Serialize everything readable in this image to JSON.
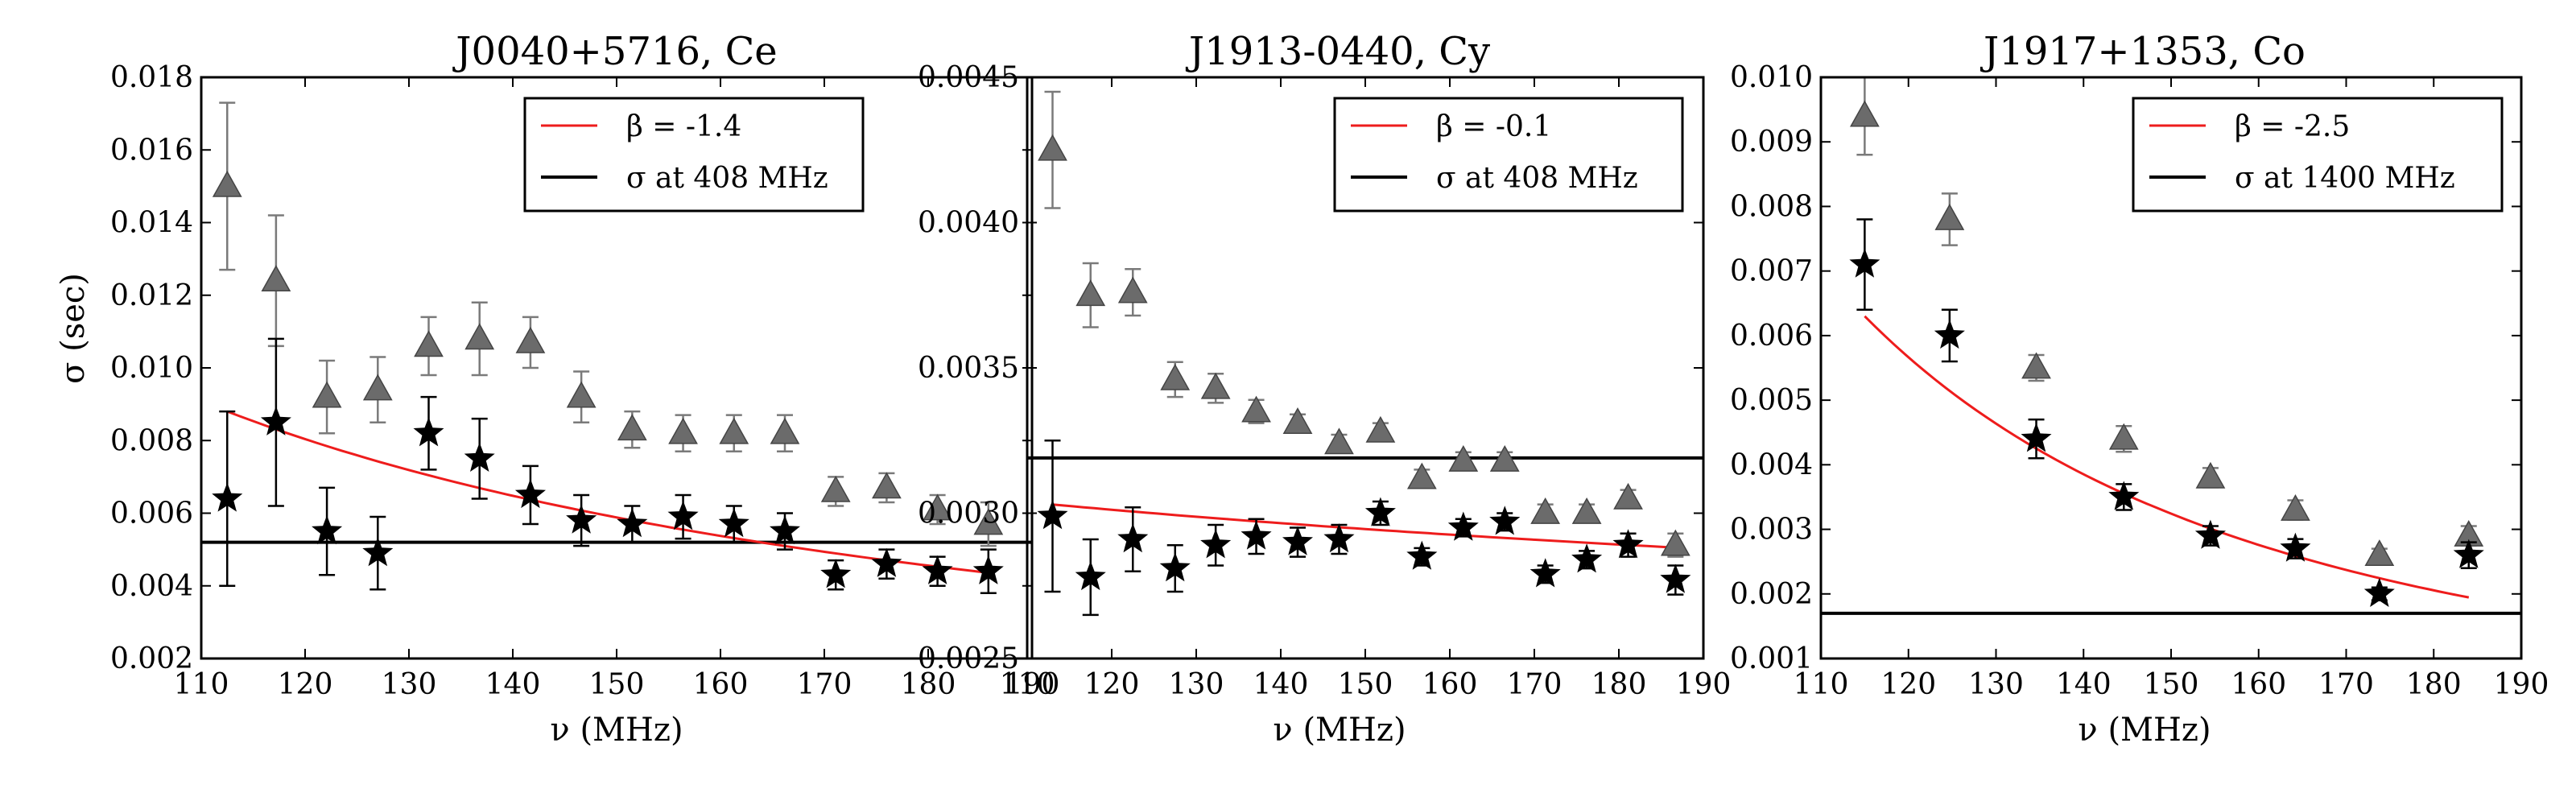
{
  "chart_data": [
    {
      "type": "scatter",
      "title": "J0040+5716, Ce",
      "xlabel": "ν (MHz)",
      "ylabel": "σ (sec)",
      "xlim": [
        110,
        190
      ],
      "ylim": [
        0.002,
        0.018
      ],
      "xticks": [
        110,
        120,
        130,
        140,
        150,
        160,
        170,
        180,
        190
      ],
      "yticks": [
        0.002,
        0.004,
        0.006,
        0.008,
        0.01,
        0.012,
        0.014,
        0.016,
        0.018
      ],
      "xtick_labels": [
        "110",
        "120",
        "130",
        "140",
        "150",
        "160",
        "170",
        "180",
        "190"
      ],
      "ytick_labels": [
        "0.002",
        "0.004",
        "0.006",
        "0.008",
        "0.010",
        "0.012",
        "0.014",
        "0.016",
        "0.018"
      ],
      "legend": {
        "location": "top-right",
        "fit_label": "β = -1.4",
        "hline_label": "σ at 408 MHz"
      },
      "hline": 0.0052,
      "fit_beta": -1.4,
      "fit_x": [
        112.5,
        186
      ],
      "fit_y0": 0.0088,
      "series": [
        {
          "name": "triangles",
          "marker": "triangle",
          "color": "#6b6b6b",
          "x": [
            112.5,
            117.2,
            122.1,
            127,
            131.9,
            136.8,
            141.7,
            146.6,
            151.5,
            156.4,
            161.3,
            166.2,
            171.1,
            176,
            180.9,
            185.8
          ],
          "y": [
            0.015,
            0.0124,
            0.0092,
            0.0094,
            0.0106,
            0.0108,
            0.0107,
            0.0092,
            0.0083,
            0.0082,
            0.0082,
            0.0082,
            0.0066,
            0.0067,
            0.0061,
            0.0057
          ],
          "err": [
            0.0023,
            0.0018,
            0.001,
            0.0009,
            0.0008,
            0.001,
            0.0007,
            0.0007,
            0.0005,
            0.0005,
            0.0005,
            0.0005,
            0.0004,
            0.0004,
            0.0004,
            0.0006
          ]
        },
        {
          "name": "stars",
          "marker": "star",
          "color": "#000000",
          "x": [
            112.5,
            117.2,
            122.1,
            127,
            131.9,
            136.8,
            141.7,
            146.6,
            151.5,
            156.4,
            161.3,
            166.2,
            171.1,
            176,
            180.9,
            185.8
          ],
          "y": [
            0.0064,
            0.0085,
            0.0055,
            0.0049,
            0.0082,
            0.0075,
            0.0065,
            0.0058,
            0.0057,
            0.0059,
            0.0057,
            0.0055,
            0.0043,
            0.0046,
            0.0044,
            0.0044
          ],
          "err": [
            0.0024,
            0.0023,
            0.0012,
            0.001,
            0.001,
            0.0011,
            0.0008,
            0.0007,
            0.0005,
            0.0006,
            0.0005,
            0.0005,
            0.0004,
            0.0004,
            0.0004,
            0.0006
          ]
        }
      ]
    },
    {
      "type": "scatter",
      "title": "J1913-0440, Cy",
      "xlabel": "ν (MHz)",
      "ylabel": "",
      "xlim": [
        110,
        190
      ],
      "ylim": [
        0.0025,
        0.0045
      ],
      "xticks": [
        110,
        120,
        130,
        140,
        150,
        160,
        170,
        180,
        190
      ],
      "yticks": [
        0.0025,
        0.003,
        0.0035,
        0.004,
        0.0045
      ],
      "xtick_labels": [
        "110",
        "120",
        "130",
        "140",
        "150",
        "160",
        "170",
        "180",
        "190"
      ],
      "ytick_labels": [
        "0.0025",
        "0.0030",
        "0.0035",
        "0.0040",
        "0.0045"
      ],
      "legend": {
        "location": "top-right",
        "fit_label": "β = -0.1",
        "hline_label": "σ at 408 MHz"
      },
      "hline": 0.00319,
      "fit_beta": -0.1,
      "fit_x": [
        113,
        187
      ],
      "fit_y0": 0.00303,
      "series": [
        {
          "name": "triangles",
          "marker": "triangle",
          "color": "#6b6b6b",
          "x": [
            113,
            117.5,
            122.5,
            127.5,
            132.3,
            137.1,
            142,
            146.9,
            151.8,
            156.7,
            161.6,
            166.5,
            171.3,
            176.2,
            181.1,
            186.7
          ],
          "y": [
            0.00425,
            0.00375,
            0.00376,
            0.00346,
            0.00343,
            0.00335,
            0.00331,
            0.00324,
            0.00328,
            0.00312,
            0.00318,
            0.00318,
            0.003,
            0.003,
            0.00305,
            0.00289
          ],
          "err": [
            0.0002,
            0.00011,
            8e-05,
            6e-05,
            5e-05,
            4e-05,
            3e-05,
            3e-05,
            3e-05,
            3e-05,
            3e-05,
            3e-05,
            3e-05,
            3e-05,
            3e-05,
            4e-05
          ]
        },
        {
          "name": "stars",
          "marker": "star",
          "color": "#000000",
          "x": [
            113,
            117.5,
            122.5,
            127.5,
            132.3,
            137.1,
            142,
            146.9,
            151.8,
            156.7,
            161.6,
            166.5,
            171.3,
            176.2,
            181.1,
            186.7
          ],
          "y": [
            0.00299,
            0.00278,
            0.00291,
            0.00281,
            0.00289,
            0.00292,
            0.0029,
            0.00291,
            0.003,
            0.00285,
            0.00295,
            0.00297,
            0.00279,
            0.00284,
            0.00289,
            0.00277
          ],
          "err": [
            0.00026,
            0.00013,
            0.00011,
            8e-05,
            7e-05,
            6e-05,
            5e-05,
            5e-05,
            4e-05,
            3e-05,
            3e-05,
            3e-05,
            3e-05,
            3e-05,
            4e-05,
            5e-05
          ]
        }
      ]
    },
    {
      "type": "scatter",
      "title": "J1917+1353, Co",
      "xlabel": "ν (MHz)",
      "ylabel": "",
      "xlim": [
        110,
        190
      ],
      "ylim": [
        0.001,
        0.01
      ],
      "xticks": [
        110,
        120,
        130,
        140,
        150,
        160,
        170,
        180,
        190
      ],
      "yticks": [
        0.001,
        0.002,
        0.003,
        0.004,
        0.005,
        0.006,
        0.007,
        0.008,
        0.009,
        0.01
      ],
      "xtick_labels": [
        "110",
        "120",
        "130",
        "140",
        "150",
        "160",
        "170",
        "180",
        "190"
      ],
      "ytick_labels": [
        "0.001",
        "0.002",
        "0.003",
        "0.004",
        "0.005",
        "0.006",
        "0.007",
        "0.008",
        "0.009",
        "0.010"
      ],
      "legend": {
        "location": "top-right",
        "fit_label": "β = -2.5",
        "hline_label": "σ at 1400 MHz"
      },
      "hline": 0.0017,
      "fit_beta": -2.5,
      "fit_x": [
        115,
        184
      ],
      "fit_y0": 0.0063,
      "series": [
        {
          "name": "triangles",
          "marker": "triangle",
          "color": "#6b6b6b",
          "x": [
            115,
            124.7,
            134.6,
            144.6,
            154.5,
            164.2,
            173.8,
            184
          ],
          "y": [
            0.0094,
            0.0078,
            0.0055,
            0.0044,
            0.0038,
            0.0033,
            0.0026,
            0.0029
          ],
          "err": [
            0.0006,
            0.0004,
            0.0002,
            0.0002,
            0.00015,
            0.00015,
            0.0001,
            0.00015
          ]
        },
        {
          "name": "stars",
          "marker": "star",
          "color": "#000000",
          "x": [
            115,
            124.7,
            134.6,
            144.6,
            154.5,
            164.2,
            173.8,
            184
          ],
          "y": [
            0.0071,
            0.006,
            0.0044,
            0.0035,
            0.0029,
            0.0027,
            0.002,
            0.0026
          ],
          "err": [
            0.0007,
            0.0004,
            0.0003,
            0.0002,
            0.00015,
            0.00015,
            0.0001,
            0.0002
          ]
        }
      ]
    }
  ]
}
